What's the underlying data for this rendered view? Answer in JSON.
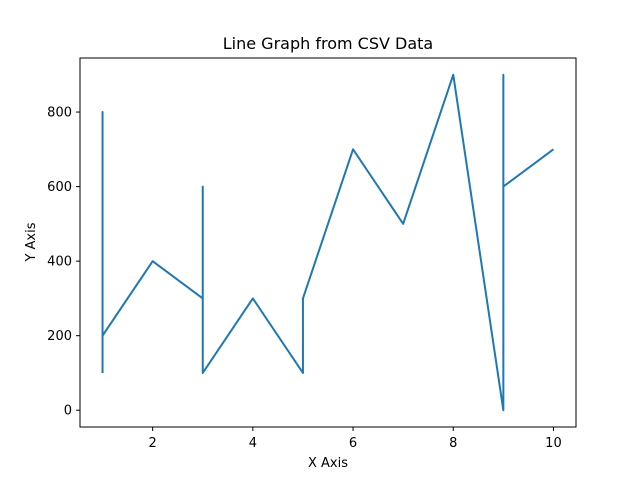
{
  "chart_data": {
    "type": "line",
    "title": "Line Graph from CSV Data",
    "xlabel": "X Axis",
    "ylabel": "Y Axis",
    "xlim": [
      0.55,
      10.45
    ],
    "ylim": [
      -45,
      945
    ],
    "xticks": [
      2,
      4,
      6,
      8,
      10
    ],
    "yticks": [
      0,
      200,
      400,
      600,
      800
    ],
    "grid": false,
    "series": [
      {
        "color": "#1f77b4",
        "x": [
          1,
          1,
          1,
          2,
          3,
          3,
          3,
          4,
          5,
          5,
          6,
          7,
          8,
          9,
          9,
          9,
          9,
          10
        ],
        "y": [
          100,
          800,
          200,
          400,
          300,
          600,
          100,
          300,
          100,
          300,
          700,
          500,
          900,
          0,
          900,
          500,
          600,
          700
        ]
      }
    ]
  }
}
